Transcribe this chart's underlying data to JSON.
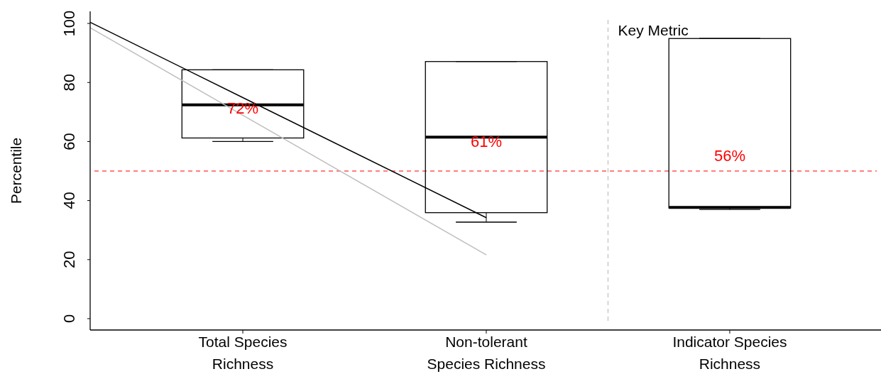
{
  "chart_data": {
    "type": "box",
    "ylabel": "Percentile",
    "categories": [
      "Total Species\nRichness",
      "Non-tolerant\nSpecies Richness",
      "Indicator Species\nRichness"
    ],
    "ylim": [
      -3.85,
      104.1
    ],
    "yticks": [
      0,
      20,
      40,
      60,
      80,
      100
    ],
    "series": [
      {
        "color": "#000000",
        "boxes": [
          {
            "low": 60.0,
            "q1": 61.2,
            "median": 72.4,
            "q3": 84.3,
            "high": 84.3
          },
          {
            "low": 32.7,
            "q1": 35.9,
            "median": 61.5,
            "q3": 87.1,
            "high": 87.1
          },
          {
            "low": 37.0,
            "q1": 37.5,
            "median": 37.7,
            "q3": 94.9,
            "high": 94.9
          }
        ]
      },
      {
        "type": "line",
        "color": "#000000",
        "values": [
          74.9,
          34.2,
          null
        ]
      },
      {
        "type": "line",
        "color": "#bebebe",
        "values": [
          68.9,
          21.6,
          null
        ]
      }
    ],
    "ref_lines": [
      {
        "axis": "y",
        "value": 50,
        "color": "#ff0000",
        "line_style": "dashed"
      }
    ],
    "annotations": [
      {
        "text": "72%",
        "x": "Total Species\nRichness",
        "y": 71.3
      },
      {
        "text": "61%",
        "x": "Non-tolerant\nSpecies Richness",
        "y": 60.1
      },
      "56%",
      "Key Metric"
    ],
    "grid": false
  }
}
